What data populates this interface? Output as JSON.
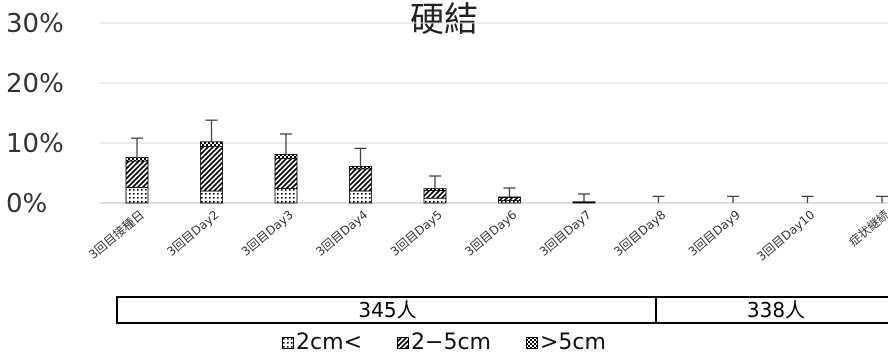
{
  "chart_data": {
    "type": "bar",
    "stacked": true,
    "title": "硬結",
    "categories": [
      "3回目接種日",
      "3回目Day2",
      "3回目Day3",
      "3回目Day4",
      "3回目Day5",
      "3回目Day6",
      "3回目Day7",
      "3回目Day8",
      "3回目Day9",
      "3回目Day10",
      "症状継続"
    ],
    "series": [
      {
        "name": "2cm<",
        "pattern": "dots",
        "values": [
          2.6,
          2.0,
          2.4,
          2.0,
          0.8,
          0.4,
          0.1,
          0.0,
          0.0,
          0.0,
          0.0
        ]
      },
      {
        "name": "2−5cm",
        "pattern": "diagonal",
        "values": [
          4.4,
          7.4,
          5.0,
          3.7,
          1.3,
          0.5,
          0.1,
          0.0,
          0.0,
          0.0,
          0.0
        ]
      },
      {
        "name": ">5cm",
        "pattern": "checker",
        "values": [
          0.6,
          0.8,
          0.7,
          0.4,
          0.3,
          0.1,
          0.0,
          0.0,
          0.0,
          0.0,
          0.0
        ]
      }
    ],
    "error_upper": [
      10.8,
      13.8,
      11.5,
      9.1,
      4.5,
      2.5,
      1.5,
      1.1,
      1.1,
      1.1,
      1.1
    ],
    "ylim": [
      0,
      30
    ],
    "yticks": [
      "0%",
      "10%",
      "20%",
      "30%"
    ],
    "grid": true,
    "legend_position": "bottom",
    "groups": [
      {
        "label": "345人",
        "span": [
          0,
          7
        ]
      },
      {
        "label": "338人",
        "span": [
          8,
          10
        ]
      }
    ]
  },
  "legend": {
    "items": [
      "2cm<",
      "2−5cm",
      ">5cm"
    ]
  }
}
